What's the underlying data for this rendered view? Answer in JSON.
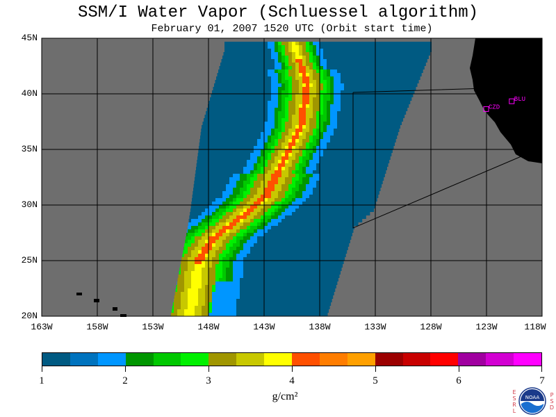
{
  "title": "SSM/I Water Vapor (Schluessel algorithm)",
  "subtitle": "February 01, 2007  1520 UTC  (Orbit start time)",
  "map": {
    "lat_labels": [
      "45N",
      "40N",
      "35N",
      "30N",
      "25N",
      "20N"
    ],
    "lon_labels": [
      "163W",
      "158W",
      "153W",
      "148W",
      "143W",
      "138W",
      "133W",
      "128W",
      "123W",
      "118W"
    ],
    "lon_range": [
      -163,
      -118
    ],
    "lat_range": [
      20,
      45
    ],
    "stations": [
      {
        "name": "CZD",
        "lon": -123.0,
        "lat": 38.6
      },
      {
        "name": "BLU",
        "lon": -120.7,
        "lat": 39.3
      }
    ]
  },
  "colorbar": {
    "tick_labels": [
      "1",
      "2",
      "3",
      "4",
      "5",
      "6",
      "7"
    ],
    "units": "g/cm²",
    "colors": [
      "#005a82",
      "#0073be",
      "#0096ff",
      "#009600",
      "#00c800",
      "#00f000",
      "#a09600",
      "#c8c800",
      "#ffff00",
      "#ff5000",
      "#ff7d00",
      "#ffa000",
      "#9b0000",
      "#c80000",
      "#ff0000",
      "#a000a0",
      "#d200d2",
      "#ff00ff"
    ]
  },
  "credit": {
    "left": [
      "E",
      "S",
      "R",
      "L"
    ],
    "right": [
      "P",
      "S",
      "D"
    ],
    "logo_text": "NOAA"
  },
  "colors": {
    "ocean": "#6e6e6e",
    "land": "#000000",
    "station": "#ff00ff"
  }
}
